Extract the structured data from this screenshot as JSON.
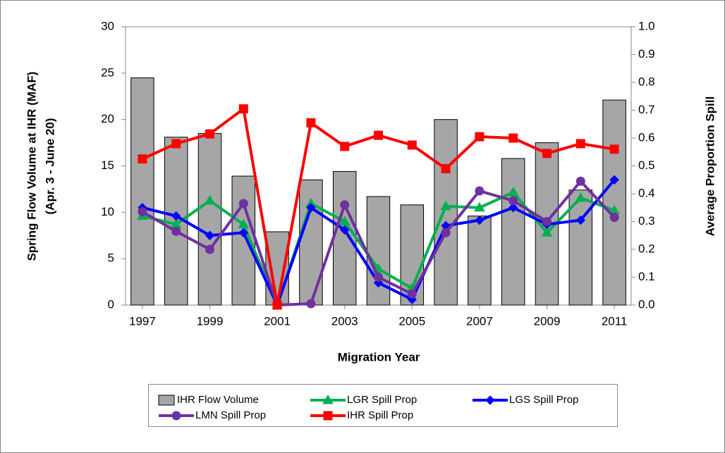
{
  "chart_data": {
    "type": "bar-line",
    "xlabel": "Migration Year",
    "ylabel": [
      "Spring Flow Volume at IHR (MAF)",
      "(Apr. 3 - June 20)"
    ],
    "y2label": "Average Proportion Spill",
    "x": [
      1997,
      1998,
      1999,
      2000,
      2001,
      2002,
      2003,
      2004,
      2005,
      2006,
      2007,
      2008,
      2009,
      2010,
      2011
    ],
    "xlim": [
      1996.5,
      2011.5
    ],
    "xticks": [
      1997,
      1999,
      2001,
      2003,
      2005,
      2007,
      2009,
      2011
    ],
    "ylim": [
      0,
      30
    ],
    "yticks": [
      0,
      5,
      10,
      15,
      20,
      25,
      30
    ],
    "y2lim": [
      0,
      1
    ],
    "y2ticks": [
      {
        "value": 0,
        "label": "0.0"
      },
      0.1,
      0.2,
      0.3,
      0.4,
      0.5,
      0.6,
      0.7,
      0.8,
      0.9,
      {
        "value": 1,
        "label": "1.0"
      }
    ],
    "series": [
      {
        "name": "IHR Flow Volume",
        "type": "bar",
        "color": "#a6a6a6",
        "values": [
          24.5,
          18.1,
          18.5,
          13.9,
          7.9,
          13.5,
          14.4,
          11.7,
          10.8,
          20.0,
          9.6,
          15.8,
          17.5,
          12.4,
          22.1
        ]
      },
      {
        "name": "LGR Spill Prop",
        "type": "line",
        "axis": "y2",
        "marker": "triangle",
        "color": "#00b050",
        "values": [
          0.32,
          0.29,
          0.375,
          0.29,
          0.0,
          0.365,
          0.3,
          0.13,
          0.06,
          0.355,
          0.35,
          0.405,
          0.26,
          0.385,
          0.34
        ]
      },
      {
        "name": "LGS Spill Prop",
        "type": "line",
        "axis": "y2",
        "marker": "diamond",
        "color": "#0000ff",
        "values": [
          0.35,
          0.32,
          0.25,
          0.26,
          0.0,
          0.35,
          0.27,
          0.08,
          0.02,
          0.285,
          0.305,
          0.35,
          0.29,
          0.305,
          0.45
        ]
      },
      {
        "name": "LMN Spill Prop",
        "type": "line",
        "axis": "y2",
        "marker": "circle",
        "color": "#7030a0",
        "values": [
          0.335,
          0.265,
          0.2,
          0.365,
          0.0,
          0.005,
          0.36,
          0.1,
          0.04,
          0.26,
          0.41,
          0.375,
          0.3,
          0.445,
          0.315
        ]
      },
      {
        "name": "IHR Spill Prop",
        "type": "line",
        "axis": "y2",
        "marker": "square",
        "color": "#ff0000",
        "values": [
          0.525,
          0.58,
          0.615,
          0.705,
          0.0,
          0.655,
          0.57,
          0.61,
          0.575,
          0.49,
          0.605,
          0.6,
          0.545,
          0.58,
          0.56
        ]
      }
    ]
  }
}
